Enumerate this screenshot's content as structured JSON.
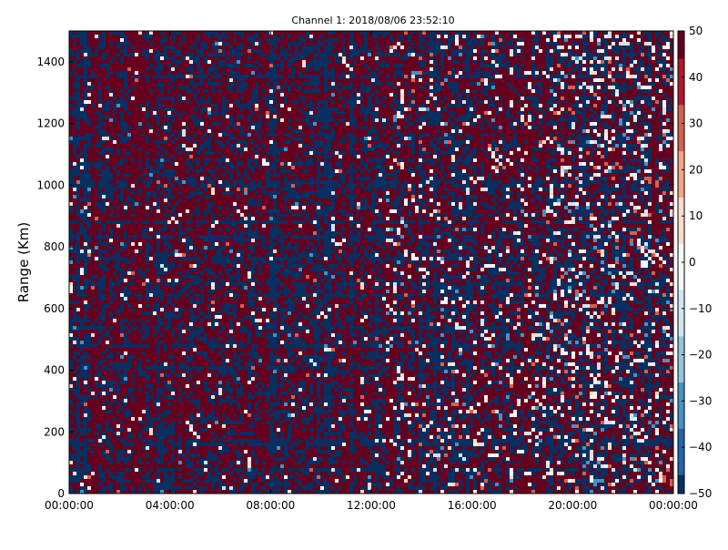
{
  "chart_data": {
    "type": "heatmap",
    "title": "Channel 1: 2018/08/06 23:52:10",
    "xlabel": "",
    "ylabel": "Range (Km)",
    "x_ticks": [
      "00:00:00",
      "04:00:00",
      "08:00:00",
      "12:00:00",
      "16:00:00",
      "20:00:00",
      "00:00:00"
    ],
    "x_range": [
      "00:00:00",
      "24:00:00"
    ],
    "ylim": [
      0,
      1500
    ],
    "y_ticks": [
      0,
      200,
      400,
      600,
      800,
      1000,
      1200,
      1400
    ],
    "colorbar": {
      "range": [
        -50,
        50
      ],
      "ticks": [
        50,
        40,
        30,
        20,
        10,
        0,
        -10,
        -20,
        -30,
        -40,
        -50
      ],
      "colormap": "RdBu_r",
      "colors": [
        "#053061",
        "#2166ac",
        "#4393c3",
        "#92c5de",
        "#d1e5f0",
        "#f7f7f7",
        "#fddbc7",
        "#f4a582",
        "#d6604d",
        "#b2182b",
        "#67001f"
      ]
    },
    "grid": false,
    "legend": "none",
    "description_of_values": "Noisy field dominated by values near +50 (dark red) and -50 (dark blue) with scattered near-zero (white) cells, increasingly speckled after 12:00:00."
  }
}
